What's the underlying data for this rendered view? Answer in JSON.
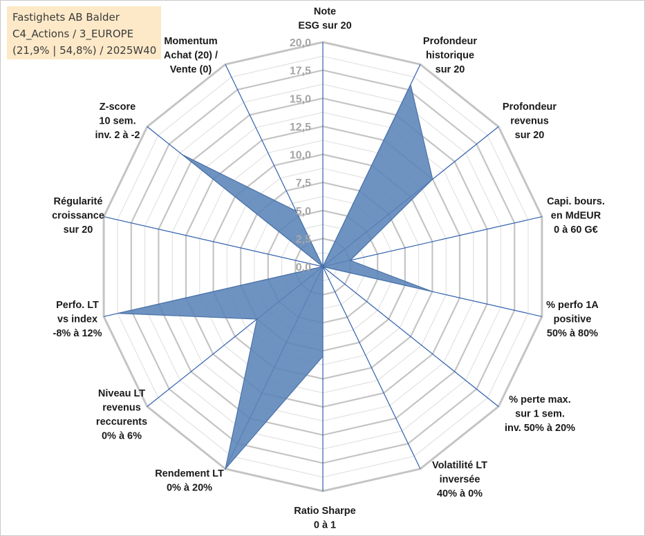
{
  "info": {
    "line1": "Fastighets AB Balder",
    "line2": "C4_Actions / 3_EUROPE",
    "line3": "(21,9% | 54,8%) / 2025W40"
  },
  "colors": {
    "series_fill": "#5b84b8",
    "series_stroke": "#4a72a8",
    "spokes": "#2f5fad",
    "grid_major": "#c4c4c4",
    "grid_minor": "#dcdcdc",
    "ticks": "#a6a6a6",
    "info_bg": "#fde9c8"
  },
  "chart_data": {
    "type": "radar",
    "rmin": 0,
    "rmax": 20,
    "ticks": [
      "0,0",
      "2,5",
      "5,0",
      "7,5",
      "10,0",
      "12,5",
      "15,0",
      "17,5",
      "20,0"
    ],
    "tick_values": [
      0,
      2.5,
      5,
      7.5,
      10,
      12.5,
      15,
      17.5,
      20
    ],
    "grid_minor": true,
    "axes": [
      {
        "label": [
          "Note",
          "ESG sur 20"
        ]
      },
      {
        "label": [
          "Profondeur",
          "historique",
          "sur 20"
        ]
      },
      {
        "label": [
          "Profondeur",
          "revenus",
          "sur 20"
        ]
      },
      {
        "label": [
          "Capi. bours.",
          "en MdEUR",
          "0 à 60 G€"
        ]
      },
      {
        "label": [
          "% perfo 1A",
          "positive",
          "50% à 80%"
        ]
      },
      {
        "label": [
          "% perte max.",
          "sur 1 sem.",
          "inv. 50% à 20%"
        ]
      },
      {
        "label": [
          "Volatilité LT",
          "inversée",
          "40% à 0%"
        ]
      },
      {
        "label": [
          "Ratio Sharpe",
          "0 à 1"
        ]
      },
      {
        "label": [
          "Rendement LT",
          "0% à 20%"
        ]
      },
      {
        "label": [
          "Niveau LT",
          "revenus",
          "reccurents",
          "0% à 6%"
        ]
      },
      {
        "label": [
          "Perfo. LT",
          "vs index",
          "-8% à 12%"
        ]
      },
      {
        "label": [
          "Régularité",
          "croissance",
          "sur 20"
        ]
      },
      {
        "label": [
          "Z-score",
          "10 sem.",
          "inv. 2 à -2"
        ]
      },
      {
        "label": [
          "Momentum",
          "Achat (20) /",
          "Vente (0)"
        ]
      }
    ],
    "series": [
      {
        "values": [
          0,
          18,
          12.5,
          2.5,
          10,
          0,
          0,
          8,
          20,
          7.5,
          18.7,
          0,
          16,
          5.5
        ]
      }
    ]
  }
}
